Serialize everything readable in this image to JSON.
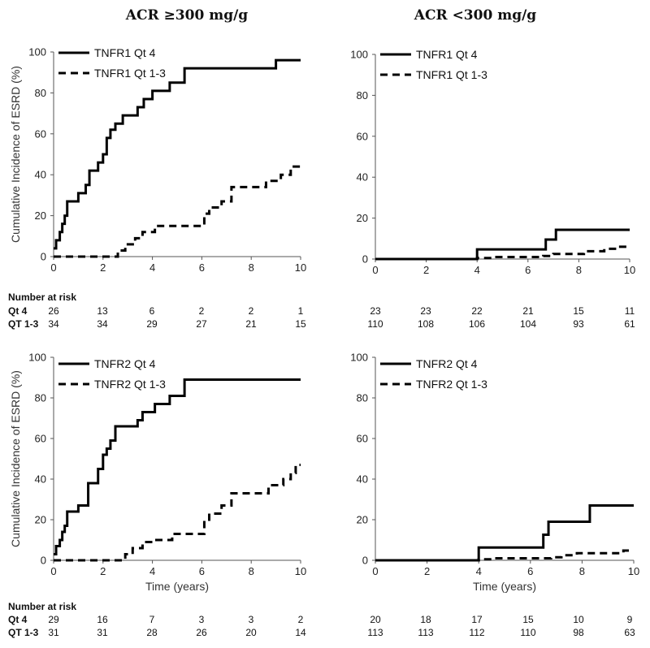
{
  "columns": [
    "ACR ≥300 mg/g",
    "ACR <300 mg/g"
  ],
  "risk": {
    "header": "Number at risk",
    "tables": [
      {
        "rows": [
          {
            "label": "Qt 4",
            "left": [
              "26",
              "13",
              "6",
              "2",
              "2",
              "1"
            ],
            "right": [
              "23",
              "23",
              "22",
              "21",
              "15",
              "11"
            ]
          },
          {
            "label": "QT 1-3",
            "left": [
              "34",
              "34",
              "29",
              "27",
              "21",
              "15"
            ],
            "right": [
              "110",
              "108",
              "106",
              "104",
              "93",
              "61"
            ]
          }
        ]
      },
      {
        "rows": [
          {
            "label": "Qt 4",
            "left": [
              "29",
              "16",
              "7",
              "3",
              "3",
              "2"
            ],
            "right": [
              "20",
              "18",
              "17",
              "15",
              "10",
              "9"
            ]
          },
          {
            "label": "QT 1-3",
            "left": [
              "31",
              "31",
              "28",
              "26",
              "20",
              "14"
            ],
            "right": [
              "113",
              "113",
              "112",
              "110",
              "98",
              "63"
            ]
          }
        ]
      }
    ]
  },
  "chart_data": [
    {
      "type": "line",
      "column": "ACR ≥300 mg/g",
      "ylabel": "Cumulative Incidence of ESRD (%)",
      "xlabel": "",
      "xlim": [
        0,
        10
      ],
      "ylim": [
        0,
        100
      ],
      "xticks": [
        "0",
        "2",
        "4",
        "6",
        "8",
        "10"
      ],
      "yticks": [
        "0",
        "20",
        "40",
        "60",
        "80",
        "100"
      ],
      "series": [
        {
          "name": "TNFR1 Qt 4",
          "style": "solid",
          "x": [
            0,
            0.1,
            0.25,
            0.35,
            0.45,
            0.55,
            1.0,
            1.3,
            1.45,
            1.8,
            2.0,
            2.15,
            2.3,
            2.5,
            2.8,
            3.4,
            3.65,
            4.0,
            4.7,
            5.3,
            9.0,
            10
          ],
          "y": [
            4,
            8,
            12,
            16,
            20,
            27,
            31,
            35,
            42,
            46,
            50,
            58,
            62,
            65,
            69,
            73,
            77,
            81,
            85,
            92,
            96,
            96
          ]
        },
        {
          "name": "TNFR1 Qt 1-3",
          "style": "dashed",
          "x": [
            0,
            2.6,
            2.9,
            3.3,
            3.6,
            4.1,
            4.5,
            6.1,
            6.3,
            6.8,
            7.2,
            8.6,
            9.2,
            9.6,
            10
          ],
          "y": [
            0,
            3,
            6,
            9,
            12,
            15,
            15,
            21,
            24,
            27,
            34,
            37,
            40,
            44,
            45
          ]
        }
      ]
    },
    {
      "type": "line",
      "column": "ACR <300 mg/g",
      "ylabel": "",
      "xlabel": "",
      "xlim": [
        0,
        10
      ],
      "ylim": [
        0,
        100
      ],
      "xticks": [
        "0",
        "2",
        "4",
        "6",
        "8",
        "10"
      ],
      "yticks": [
        "0",
        "20",
        "40",
        "60",
        "80",
        "100"
      ],
      "series": [
        {
          "name": "TNFR1 Qt 4",
          "style": "solid",
          "x": [
            0,
            4.0,
            6.7,
            7.1,
            10
          ],
          "y": [
            0,
            4.7,
            9.5,
            14.3,
            14.3
          ]
        },
        {
          "name": "TNFR1 Qt 1-3",
          "style": "dashed",
          "x": [
            0,
            4.0,
            4.6,
            6.6,
            7.0,
            8.2,
            9.0,
            9.5,
            10
          ],
          "y": [
            0,
            0.5,
            1.0,
            1.5,
            2.5,
            3.8,
            5.0,
            6.0,
            6.0
          ]
        }
      ]
    },
    {
      "type": "line",
      "column": "ACR ≥300 mg/g",
      "ylabel": "Cumulative Incidence of ESRD (%)",
      "xlabel": "Time (years)",
      "xlim": [
        0,
        10
      ],
      "ylim": [
        0,
        100
      ],
      "xticks": [
        "0",
        "2",
        "4",
        "6",
        "8",
        "10"
      ],
      "yticks": [
        "0",
        "20",
        "40",
        "60",
        "80",
        "100"
      ],
      "series": [
        {
          "name": "TNFR2 Qt 4",
          "style": "solid",
          "x": [
            0,
            0.1,
            0.25,
            0.35,
            0.45,
            0.55,
            1.0,
            1.4,
            1.8,
            2.0,
            2.15,
            2.3,
            2.5,
            2.8,
            3.4,
            3.6,
            4.1,
            4.7,
            5.3,
            10
          ],
          "y": [
            3,
            7,
            10,
            14,
            17,
            24,
            27,
            38,
            45,
            52,
            55,
            59,
            66,
            66,
            69,
            73,
            77,
            81,
            89,
            89
          ]
        },
        {
          "name": "TNFR2 Qt 1-3",
          "style": "dashed",
          "x": [
            0,
            2.9,
            3.2,
            3.6,
            4.0,
            4.8,
            6.1,
            6.3,
            6.8,
            7.2,
            8.7,
            9.3,
            9.6,
            9.8,
            10
          ],
          "y": [
            0,
            3,
            6,
            9,
            10,
            13,
            20,
            23,
            27,
            33,
            37,
            40,
            43,
            47,
            47
          ]
        }
      ]
    },
    {
      "type": "line",
      "column": "ACR <300 mg/g",
      "ylabel": "",
      "xlabel": "Time (years)",
      "xlim": [
        0,
        10
      ],
      "ylim": [
        0,
        100
      ],
      "xticks": [
        "0",
        "2",
        "4",
        "6",
        "8",
        "10"
      ],
      "yticks": [
        "0",
        "20",
        "40",
        "60",
        "80",
        "100"
      ],
      "series": [
        {
          "name": "TNFR2 Qt 4",
          "style": "solid",
          "x": [
            0,
            4.0,
            6.5,
            6.7,
            8.3,
            10
          ],
          "y": [
            0,
            6.3,
            12.6,
            19.0,
            27.0,
            27.0
          ]
        },
        {
          "name": "TNFR2 Qt 1-3",
          "style": "dashed",
          "x": [
            0,
            4.0,
            4.6,
            6.8,
            7.2,
            7.8,
            9.0,
            9.6,
            10
          ],
          "y": [
            0,
            0.5,
            1.0,
            1.5,
            2.5,
            3.5,
            3.5,
            4.8,
            4.8
          ]
        }
      ]
    }
  ]
}
